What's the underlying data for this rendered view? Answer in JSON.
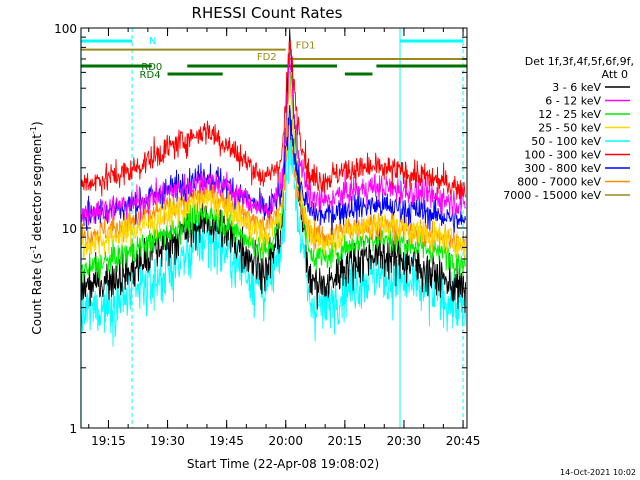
{
  "chart_data": {
    "type": "line",
    "title": "RHESSI Count Rates",
    "xlabel": "Start Time (22-Apr-08 19:08:02)",
    "ylabel_main": "Count Rate (s",
    "ylabel_sup1": "-1",
    "ylabel_mid": " detector segment",
    "ylabel_sup2": "-1",
    "ylabel_end": ")",
    "y_scale": "log",
    "ylim": [
      1,
      100
    ],
    "xlim": [
      "19:08:02",
      "20:46:00"
    ],
    "x_ticks": [
      "19:15",
      "19:30",
      "19:45",
      "20:00",
      "20:15",
      "20:30",
      "20:45"
    ],
    "y_tick_labels": [
      "1",
      "10",
      "100"
    ],
    "legend_title_1": "Det 1f,3f,4f,5f,6f,9f,",
    "legend_title_2": "Att 0",
    "legend_position": "right",
    "footer_date": "14-Oct-2021 10:02",
    "series": [
      {
        "name": "3 - 6 keV",
        "color": "#000000",
        "knots": [
          [
            "19:08",
            5.0
          ],
          [
            "19:20",
            6.0
          ],
          [
            "19:30",
            8.5
          ],
          [
            "19:40",
            11.0
          ],
          [
            "19:45",
            9.5
          ],
          [
            "19:55",
            6.0
          ],
          [
            "19:59",
            10.0
          ],
          [
            "20:01",
            90.0
          ],
          [
            "20:03",
            20.0
          ],
          [
            "20:06",
            5.5
          ],
          [
            "20:10",
            5.0
          ],
          [
            "20:15",
            6.5
          ],
          [
            "20:22",
            7.5
          ],
          [
            "20:30",
            7.0
          ],
          [
            "20:40",
            5.5
          ],
          [
            "20:46",
            4.8
          ]
        ]
      },
      {
        "name": "6 - 12 keV",
        "color": "#ff00ff",
        "knots": [
          [
            "19:08",
            12.0
          ],
          [
            "19:20",
            13.0
          ],
          [
            "19:30",
            15.0
          ],
          [
            "19:40",
            17.5
          ],
          [
            "19:45",
            16.0
          ],
          [
            "19:55",
            12.0
          ],
          [
            "19:59",
            16.0
          ],
          [
            "20:01",
            70.0
          ],
          [
            "20:03",
            25.0
          ],
          [
            "20:06",
            14.0
          ],
          [
            "20:10",
            13.5
          ],
          [
            "20:15",
            15.0
          ],
          [
            "20:22",
            16.0
          ],
          [
            "20:30",
            15.5
          ],
          [
            "20:40",
            14.0
          ],
          [
            "20:46",
            13.0
          ]
        ]
      },
      {
        "name": "12 - 25 keV",
        "color": "#00ee00",
        "knots": [
          [
            "19:08",
            6.0
          ],
          [
            "19:20",
            7.5
          ],
          [
            "19:30",
            9.5
          ],
          [
            "19:40",
            12.0
          ],
          [
            "19:45",
            10.5
          ],
          [
            "19:55",
            7.5
          ],
          [
            "19:59",
            11.0
          ],
          [
            "20:01",
            60.0
          ],
          [
            "20:03",
            18.0
          ],
          [
            "20:06",
            7.5
          ],
          [
            "20:10",
            7.0
          ],
          [
            "20:15",
            8.0
          ],
          [
            "20:22",
            9.0
          ],
          [
            "20:30",
            8.5
          ],
          [
            "20:40",
            7.5
          ],
          [
            "20:46",
            6.5
          ]
        ]
      },
      {
        "name": "25 - 50 keV",
        "color": "#ffd700",
        "knots": [
          [
            "19:08",
            8.0
          ],
          [
            "19:20",
            9.5
          ],
          [
            "19:30",
            11.5
          ],
          [
            "19:40",
            14.0
          ],
          [
            "19:45",
            12.5
          ],
          [
            "19:55",
            9.0
          ],
          [
            "19:59",
            12.0
          ],
          [
            "20:01",
            55.0
          ],
          [
            "20:03",
            18.0
          ],
          [
            "20:06",
            9.0
          ],
          [
            "20:10",
            8.5
          ],
          [
            "20:15",
            9.5
          ],
          [
            "20:22",
            10.5
          ],
          [
            "20:30",
            10.0
          ],
          [
            "20:40",
            8.8
          ],
          [
            "20:46",
            8.0
          ]
        ]
      },
      {
        "name": "50 - 100 keV",
        "color": "#00ffff",
        "knots": [
          [
            "19:08",
            3.7
          ],
          [
            "19:20",
            4.5
          ],
          [
            "19:30",
            6.0
          ],
          [
            "19:40",
            9.0
          ],
          [
            "19:45",
            7.5
          ],
          [
            "19:55",
            4.8
          ],
          [
            "19:59",
            8.0
          ],
          [
            "20:01",
            30.0
          ],
          [
            "20:03",
            12.0
          ],
          [
            "20:06",
            4.2
          ],
          [
            "20:10",
            4.0
          ],
          [
            "20:15",
            5.0
          ],
          [
            "20:22",
            5.8
          ],
          [
            "20:30",
            5.3
          ],
          [
            "20:40",
            4.5
          ],
          [
            "20:46",
            3.8
          ]
        ]
      },
      {
        "name": "100 - 300 keV",
        "color": "#ff0000",
        "knots": [
          [
            "19:08",
            16.5
          ],
          [
            "19:20",
            19.0
          ],
          [
            "19:30",
            25.0
          ],
          [
            "19:40",
            31.0
          ],
          [
            "19:45",
            26.0
          ],
          [
            "19:55",
            17.5
          ],
          [
            "19:59",
            22.0
          ],
          [
            "20:01",
            85.0
          ],
          [
            "20:03",
            35.0
          ],
          [
            "20:06",
            18.0
          ],
          [
            "20:10",
            17.5
          ],
          [
            "20:15",
            19.5
          ],
          [
            "20:22",
            20.0
          ],
          [
            "20:30",
            19.0
          ],
          [
            "20:40",
            17.0
          ],
          [
            "20:46",
            15.5
          ]
        ]
      },
      {
        "name": "300 - 800 keV",
        "color": "#0000ff",
        "knots": [
          [
            "19:08",
            11.5
          ],
          [
            "19:20",
            13.0
          ],
          [
            "19:30",
            15.5
          ],
          [
            "19:40",
            18.5
          ],
          [
            "19:45",
            16.5
          ],
          [
            "19:55",
            12.0
          ],
          [
            "19:59",
            15.0
          ],
          [
            "20:01",
            38.0
          ],
          [
            "20:03",
            18.0
          ],
          [
            "20:06",
            12.0
          ],
          [
            "20:10",
            11.5
          ],
          [
            "20:15",
            12.5
          ],
          [
            "20:22",
            13.0
          ],
          [
            "20:30",
            12.5
          ],
          [
            "20:40",
            11.5
          ],
          [
            "20:46",
            10.5
          ]
        ]
      },
      {
        "name": "800 - 7000 keV",
        "color": "#ff8c00",
        "knots": [
          [
            "19:08",
            9.0
          ],
          [
            "19:20",
            10.5
          ],
          [
            "19:30",
            12.5
          ],
          [
            "19:40",
            15.0
          ],
          [
            "19:45",
            13.5
          ],
          [
            "19:55",
            10.0
          ],
          [
            "19:59",
            13.0
          ],
          [
            "20:01",
            35.0
          ],
          [
            "20:03",
            14.0
          ],
          [
            "20:06",
            9.5
          ],
          [
            "20:10",
            9.0
          ],
          [
            "20:15",
            10.0
          ],
          [
            "20:22",
            10.5
          ],
          [
            "20:30",
            10.0
          ],
          [
            "20:40",
            9.0
          ],
          [
            "20:46",
            8.5
          ]
        ]
      },
      {
        "name": "7000 - 15000 keV",
        "color": "#9b8a1b",
        "knots": []
      }
    ],
    "annotations": {
      "att_line": {
        "color": "#00ffff",
        "label": "N",
        "segments": [
          [
            "19:08",
            "19:21"
          ],
          [
            "20:29",
            "20:45"
          ]
        ]
      },
      "fd_line": {
        "color": "#9b8a1b",
        "labels": [
          "FD2",
          "FD1"
        ],
        "segments": [
          [
            "19:08",
            "20:00"
          ],
          [
            "20:01",
            "20:46"
          ]
        ],
        "level_low": 70,
        "level_high": 78
      },
      "rd_lines": {
        "color": "#007000",
        "labels": [
          "RD0",
          "RD4"
        ],
        "segments_a": [
          [
            "19:08",
            "19:26"
          ],
          [
            "19:35",
            "20:13"
          ],
          [
            "20:23",
            "20:46"
          ]
        ],
        "segments_b": [
          [
            "19:30",
            "19:44"
          ],
          [
            "20:15",
            "20:22"
          ]
        ]
      },
      "vertical_solid": [
        "19:08",
        "20:29"
      ],
      "vertical_dashed": [
        "19:21",
        "20:45"
      ]
    }
  }
}
